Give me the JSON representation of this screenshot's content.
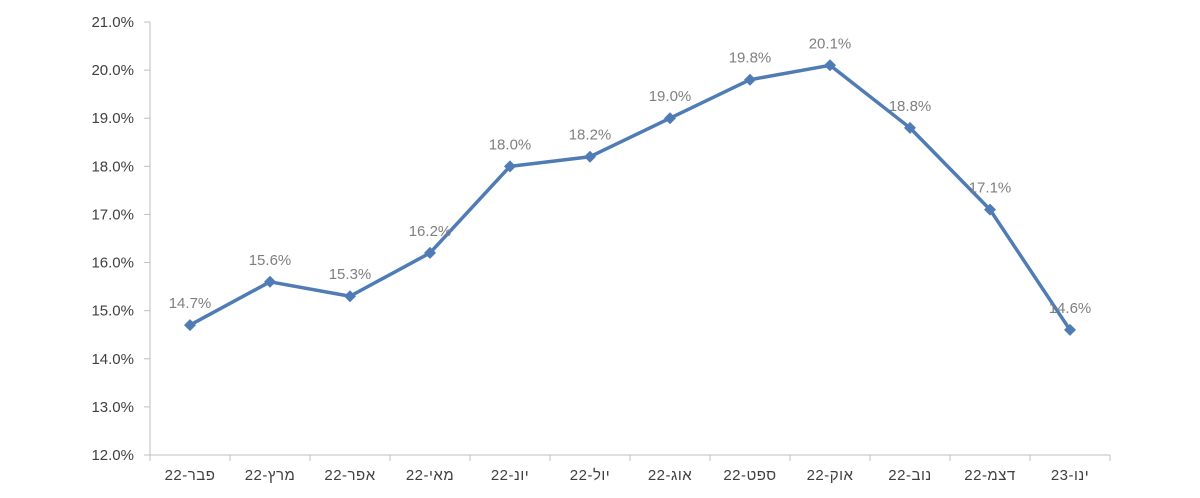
{
  "chart_data": {
    "type": "line",
    "title": "",
    "xlabel": "",
    "ylabel": "",
    "categories": [
      "פבר-22",
      "מרץ-22",
      "אפר-22",
      "מאי-22",
      "יונ-22",
      "יול-22",
      "אוג-22",
      "ספט-22",
      "אוק-22",
      "נוב-22",
      "דצמ-22",
      "ינו-23"
    ],
    "series": [
      {
        "values": [
          14.7,
          15.6,
          15.3,
          16.2,
          18.0,
          18.2,
          19.0,
          19.8,
          20.1,
          18.8,
          17.1,
          14.6
        ],
        "labels": [
          "14.7%",
          "15.6%",
          "15.3%",
          "16.2%",
          "18.0%",
          "18.2%",
          "19.0%",
          "19.8%",
          "20.1%",
          "18.8%",
          "17.1%",
          "14.6%"
        ],
        "color": "#4f7cb5",
        "marker": "diamond"
      }
    ],
    "ylim": [
      12.0,
      21.0
    ],
    "yticks": [
      12.0,
      13.0,
      14.0,
      15.0,
      16.0,
      17.0,
      18.0,
      19.0,
      20.0,
      21.0
    ],
    "ytick_labels": [
      "12.0%",
      "13.0%",
      "14.0%",
      "15.0%",
      "16.0%",
      "17.0%",
      "18.0%",
      "19.0%",
      "20.0%",
      "21.0%"
    ],
    "grid": false,
    "legend": "none",
    "axis_color": "#bfbfbf"
  }
}
